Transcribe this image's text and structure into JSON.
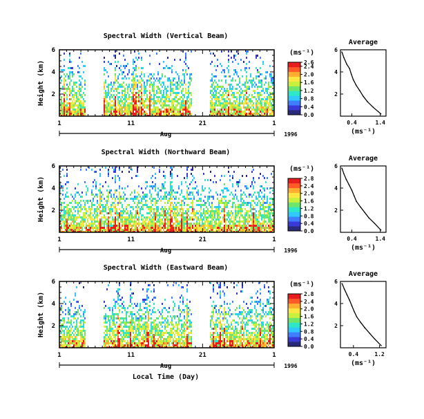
{
  "chart_data": [
    {
      "type": "heatmap",
      "title": "Spectral Width (Vertical Beam)",
      "ylabel": "Height (km)",
      "xlabel": "",
      "x_range_days": [
        1,
        31
      ],
      "xticks": [
        "1",
        "11",
        "21",
        "1"
      ],
      "month_label": "Aug",
      "year_label": "1996",
      "ylim": [
        0,
        6
      ],
      "yticks": [
        "2",
        "4",
        "6"
      ],
      "data_gaps_days": [
        [
          4.5,
          7
        ],
        [
          19.5,
          22
        ]
      ],
      "colorbar": {
        "label": "(ms⁻¹)",
        "min": 0.0,
        "max": 2.6,
        "ticks": [
          "2.6",
          "2.4",
          "2.0",
          "1.6",
          "1.2",
          "0.8",
          "0.4",
          "0.0"
        ],
        "colors": [
          "#2a2a7a",
          "#3a3ad8",
          "#3f7fff",
          "#2fc8ff",
          "#2ee6c8",
          "#6ee66e",
          "#c8f03c",
          "#ffe640",
          "#ffae30",
          "#ff5a28",
          "#e81e1e"
        ]
      },
      "profile": {
        "title": "Average",
        "xlabel": "(ms⁻¹)",
        "xticks": [
          "0.4",
          "1.4"
        ],
        "xlim": [
          0,
          1.6
        ],
        "ylim": [
          0,
          6
        ],
        "yticks": [
          "2",
          "4",
          "6"
        ],
        "x": [
          0.05,
          0.12,
          0.22,
          0.32,
          0.38,
          0.45,
          0.55,
          0.68,
          0.8,
          0.95,
          1.15,
          1.42
        ],
        "y": [
          5.8,
          5.3,
          4.7,
          4.3,
          3.8,
          3.3,
          2.8,
          2.3,
          1.8,
          1.3,
          0.8,
          0.2
        ]
      }
    },
    {
      "type": "heatmap",
      "title": "Spectral Width (Northward Beam)",
      "ylabel": "Height (km)",
      "xlabel": "",
      "x_range_days": [
        1,
        31
      ],
      "xticks": [
        "1",
        "11",
        "21",
        "1"
      ],
      "month_label": "Aug",
      "year_label": "1996",
      "ylim": [
        0,
        6
      ],
      "yticks": [
        "2",
        "4",
        "6"
      ],
      "data_gaps_days": [],
      "colorbar": {
        "label": "(ms⁻¹)",
        "min": 0.0,
        "max": 2.8,
        "ticks": [
          "2.8",
          "2.4",
          "2.0",
          "1.6",
          "1.2",
          "0.8",
          "0.4",
          "0.0"
        ],
        "colors": [
          "#2a2a7a",
          "#3a3ad8",
          "#3f7fff",
          "#2fc8ff",
          "#2ee6c8",
          "#6ee66e",
          "#c8f03c",
          "#ffe640",
          "#ffae30",
          "#ff5a28",
          "#e81e1e"
        ]
      },
      "profile": {
        "title": "Average",
        "xlabel": "(ms⁻¹)",
        "xticks": [
          "0.4",
          "1.4"
        ],
        "xlim": [
          0,
          1.6
        ],
        "ylim": [
          0,
          6
        ],
        "yticks": [
          "2",
          "4",
          "6"
        ],
        "x": [
          0.05,
          0.12,
          0.2,
          0.3,
          0.4,
          0.48,
          0.56,
          0.7,
          0.85,
          1.0,
          1.2,
          1.42
        ],
        "y": [
          5.8,
          5.3,
          4.8,
          4.3,
          3.8,
          3.3,
          2.8,
          2.3,
          1.8,
          1.3,
          0.8,
          0.2
        ]
      }
    },
    {
      "type": "heatmap",
      "title": "Spectral Width (Eastward Beam)",
      "ylabel": "Height (km)",
      "xlabel": "Local Time (Day)",
      "x_range_days": [
        1,
        31
      ],
      "xticks": [
        "1",
        "11",
        "21",
        "1"
      ],
      "month_label": "Aug",
      "year_label": "1996",
      "ylim": [
        0,
        6
      ],
      "yticks": [
        "2",
        "4",
        "6"
      ],
      "data_gaps_days": [
        [
          4.5,
          7
        ],
        [
          19.5,
          22
        ]
      ],
      "colorbar": {
        "label": "(ms⁻¹)",
        "min": 0.0,
        "max": 2.8,
        "ticks": [
          "2.8",
          "2.4",
          "2.0",
          "1.6",
          "1.2",
          "0.8",
          "0.4",
          "0.0"
        ],
        "colors": [
          "#2a2a7a",
          "#3a3ad8",
          "#3f7fff",
          "#2fc8ff",
          "#2ee6c8",
          "#6ee66e",
          "#c8f03c",
          "#ffe640",
          "#ffae30",
          "#ff5a28",
          "#e81e1e"
        ]
      },
      "profile": {
        "title": "Average",
        "xlabel": "(ms⁻¹)",
        "xticks": [
          "0.4",
          "1.2"
        ],
        "xlim": [
          0,
          1.4
        ],
        "ylim": [
          0,
          6
        ],
        "yticks": [
          "2",
          "4",
          "6"
        ],
        "x": [
          0.05,
          0.12,
          0.2,
          0.28,
          0.35,
          0.42,
          0.5,
          0.62,
          0.75,
          0.9,
          1.05,
          1.25
        ],
        "y": [
          5.8,
          5.3,
          4.8,
          4.3,
          3.8,
          3.3,
          2.8,
          2.3,
          1.8,
          1.3,
          0.8,
          0.2
        ]
      }
    }
  ]
}
